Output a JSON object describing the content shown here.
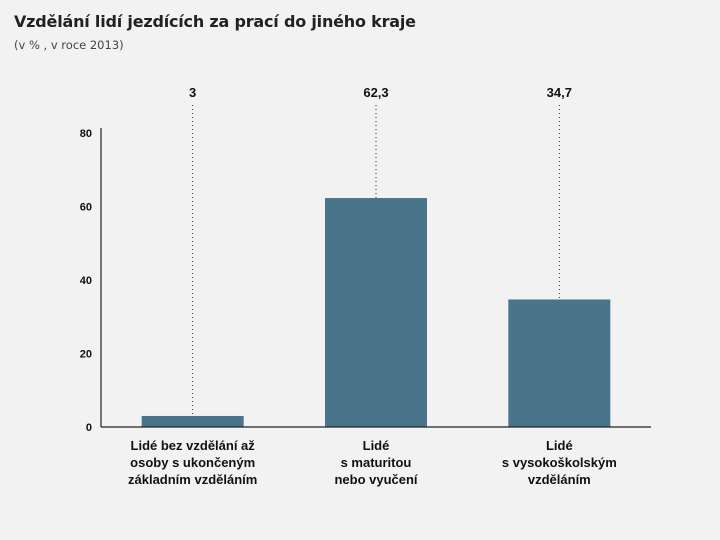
{
  "chart_data": {
    "type": "bar",
    "title": "Vzdělání lidí jezdících za prací do jiného kraje",
    "subtitle": "(v % , v roce 2013)",
    "categories": [
      [
        "Lidé bez vzdělání až",
        "osoby s ukončeným",
        "základním vzděláním"
      ],
      [
        "Lidé",
        "s maturitou",
        "nebo vyučení"
      ],
      [
        "Lidé",
        "s vysokoškolským",
        "vzděláním"
      ]
    ],
    "values": [
      3,
      62.3,
      34.7
    ],
    "value_labels": [
      "3",
      "62,3",
      "34,7"
    ],
    "yticks": [
      0,
      20,
      40,
      60,
      80
    ],
    "ylim": [
      0,
      80
    ],
    "grid": false,
    "bar_color": "#4a7489"
  }
}
